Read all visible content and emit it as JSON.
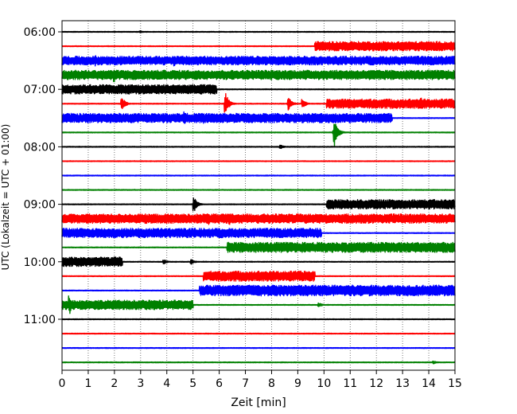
{
  "chart_data": {
    "type": "line",
    "title": "",
    "xlabel": "Zeit  [min]",
    "ylabel": "UTC (Lokalzeit = UTC + 01:00)",
    "xlim": [
      0,
      15
    ],
    "x_ticks": [
      0,
      1,
      2,
      3,
      4,
      5,
      6,
      7,
      8,
      9,
      10,
      11,
      12,
      13,
      14,
      15
    ],
    "x_tick_labels": [
      "0",
      "1",
      "2",
      "3",
      "4",
      "5",
      "6",
      "7",
      "8",
      "9",
      "10",
      "11",
      "12",
      "13",
      "14",
      "15"
    ],
    "y_ticks": [
      "06:00",
      "07:00",
      "08:00",
      "09:00",
      "10:00",
      "11:00"
    ],
    "grid_x": true,
    "trace_minutes": 15,
    "row_colors": [
      "#000000",
      "#ff0000",
      "#0000ff",
      "#008000"
    ],
    "rows": [
      {
        "time": "06:00",
        "color": "#000000",
        "bands": [],
        "bursts": [
          {
            "x": 3.0,
            "a": 0.15
          }
        ]
      },
      {
        "time": "06:15",
        "color": "#ff0000",
        "bands": [
          {
            "x0": 9.65,
            "x1": 15,
            "a": 0.65
          }
        ],
        "bursts": []
      },
      {
        "time": "06:30",
        "color": "#0000ff",
        "bands": [
          {
            "x0": 0,
            "x1": 15,
            "a": 0.6
          }
        ],
        "bursts": [
          {
            "x": 1.3,
            "a": 0.75
          },
          {
            "x": 4.3,
            "a": 0.75
          }
        ]
      },
      {
        "time": "06:45",
        "color": "#008000",
        "bands": [
          {
            "x0": 0,
            "x1": 15,
            "a": 0.65
          }
        ],
        "bursts": [
          {
            "x": 2.0,
            "a": 0.95
          }
        ]
      },
      {
        "time": "07:00",
        "color": "#000000",
        "bands": [
          {
            "x0": 0,
            "x1": 5.9,
            "a": 0.65
          }
        ],
        "bursts": []
      },
      {
        "time": "07:15",
        "color": "#ff0000",
        "bands": [
          {
            "x0": 10.1,
            "x1": 15,
            "a": 0.65
          }
        ],
        "bursts": [
          {
            "x": 2.3,
            "a": 0.9
          },
          {
            "x": 6.25,
            "a": 1.5
          },
          {
            "x": 8.65,
            "a": 1.0
          },
          {
            "x": 9.2,
            "a": 0.6
          },
          {
            "x": 13.7,
            "a": 0.9
          }
        ]
      },
      {
        "time": "07:30",
        "color": "#0000ff",
        "bands": [
          {
            "x0": 0,
            "x1": 12.6,
            "a": 0.65
          }
        ],
        "bursts": [
          {
            "x": 4.7,
            "a": 0.9
          },
          {
            "x": 5.4,
            "a": 0.8
          }
        ]
      },
      {
        "time": "07:45",
        "color": "#008000",
        "bands": [],
        "bursts": [
          {
            "x": 10.4,
            "a": 2.0
          }
        ]
      },
      {
        "time": "08:00",
        "color": "#000000",
        "bands": [],
        "bursts": [
          {
            "x": 8.35,
            "a": 0.3
          }
        ]
      },
      {
        "time": "08:15",
        "color": "#ff0000",
        "bands": [],
        "bursts": []
      },
      {
        "time": "08:30",
        "color": "#0000ff",
        "bands": [],
        "bursts": []
      },
      {
        "time": "08:45",
        "color": "#008000",
        "bands": [],
        "bursts": []
      },
      {
        "time": "09:00",
        "color": "#000000",
        "bands": [
          {
            "x0": 10.1,
            "x1": 15,
            "a": 0.65
          }
        ],
        "bursts": [
          {
            "x": 5.05,
            "a": 1.0
          }
        ]
      },
      {
        "time": "09:15",
        "color": "#ff0000",
        "bands": [
          {
            "x0": 0,
            "x1": 15,
            "a": 0.65
          }
        ],
        "bursts": [
          {
            "x": 5.6,
            "a": 1.0
          },
          {
            "x": 6.4,
            "a": 0.8
          }
        ]
      },
      {
        "time": "09:30",
        "color": "#0000ff",
        "bands": [
          {
            "x0": 0,
            "x1": 9.9,
            "a": 0.65
          }
        ],
        "bursts": []
      },
      {
        "time": "09:45",
        "color": "#008000",
        "bands": [
          {
            "x0": 6.3,
            "x1": 15,
            "a": 0.7
          }
        ],
        "bursts": []
      },
      {
        "time": "10:00",
        "color": "#000000",
        "bands": [
          {
            "x0": 0,
            "x1": 2.3,
            "a": 0.65
          }
        ],
        "bursts": [
          {
            "x": 3.9,
            "a": 0.3
          },
          {
            "x": 4.95,
            "a": 0.35
          }
        ]
      },
      {
        "time": "10:15",
        "color": "#ff0000",
        "bands": [
          {
            "x0": 5.4,
            "x1": 9.65,
            "a": 0.7
          }
        ],
        "bursts": []
      },
      {
        "time": "10:30",
        "color": "#0000ff",
        "bands": [
          {
            "x0": 5.25,
            "x1": 15,
            "a": 0.75
          }
        ],
        "bursts": []
      },
      {
        "time": "10:45",
        "color": "#008000",
        "bands": [
          {
            "x0": 0,
            "x1": 5.0,
            "a": 0.65
          }
        ],
        "bursts": [
          {
            "x": 0.3,
            "a": 1.3
          },
          {
            "x": 9.8,
            "a": 0.3
          }
        ]
      },
      {
        "time": "11:00",
        "color": "#000000",
        "bands": [],
        "bursts": []
      },
      {
        "time": "11:15",
        "color": "#ff0000",
        "bands": [],
        "bursts": []
      },
      {
        "time": "11:30",
        "color": "#0000ff",
        "bands": [],
        "bursts": []
      },
      {
        "time": "11:45",
        "color": "#008000",
        "bands": [],
        "bursts": [
          {
            "x": 14.2,
            "a": 0.2
          }
        ]
      }
    ]
  }
}
